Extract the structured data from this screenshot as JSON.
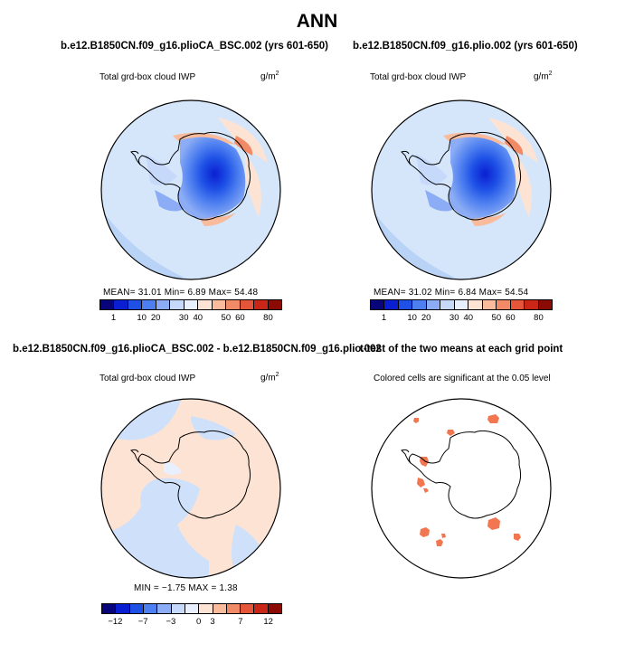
{
  "main_title": "ANN",
  "panels": [
    {
      "title": "b.e12.B1850CN.f09_g16.plioCA_BSC.002 (yrs 601-650)",
      "subtitle": "Total grd-box cloud IWP",
      "units": "g/m",
      "units_exp": "2",
      "stats": "MEAN=    31.01    Min=     6.89    Max=    54.48"
    },
    {
      "title": "b.e12.B1850CN.f09_g16.plio.002 (yrs 601-650)",
      "subtitle": "Total grd-box cloud IWP",
      "units": "g/m",
      "units_exp": "2",
      "stats": "MEAN=    31.02    Min=     6.84    Max=    54.54"
    },
    {
      "title": "b.e12.B1850CN.f09_g16.plioCA_BSC.002 - b.e12.B1850CN.f09_g16.plio.002",
      "subtitle": "Total grd-box cloud IWP",
      "units": "g/m",
      "units_exp": "2",
      "stats": "MIN =   −1.75   MAX =    1.38"
    },
    {
      "title": "t-test of the two means at each grid point",
      "subtitle": "Colored cells are significant at the 0.05 level"
    }
  ],
  "colorbar_abs": {
    "labels": [
      "1",
      "10",
      "20",
      "30",
      "40",
      "50",
      "60",
      "80"
    ],
    "colors": [
      "#08057a",
      "#0a1fd2",
      "#1e50e6",
      "#4d7ff0",
      "#8cadf5",
      "#c6d9fb",
      "#e8f0ff",
      "#fde3d3",
      "#f9bb9c",
      "#f18a66",
      "#e4553a",
      "#c92618",
      "#8c0a04"
    ]
  },
  "colorbar_diff": {
    "labels": [
      "−12",
      "−7",
      "−3",
      "0",
      "3",
      "7",
      "12"
    ],
    "colors": [
      "#08057a",
      "#0a1fd2",
      "#1e50e6",
      "#4d7ff0",
      "#8cadf5",
      "#c6d9fb",
      "#e8f0ff",
      "#fde3d3",
      "#f9bb9c",
      "#f18a66",
      "#e4553a",
      "#c92618",
      "#8c0a04"
    ]
  },
  "palette": {
    "ocean_light": "#d5e6fb",
    "ocean_mid": "#b9d3f7",
    "diff_pos": "#fde3d3",
    "diff_neg": "#cfe1fa",
    "signif": "#f2764f"
  }
}
